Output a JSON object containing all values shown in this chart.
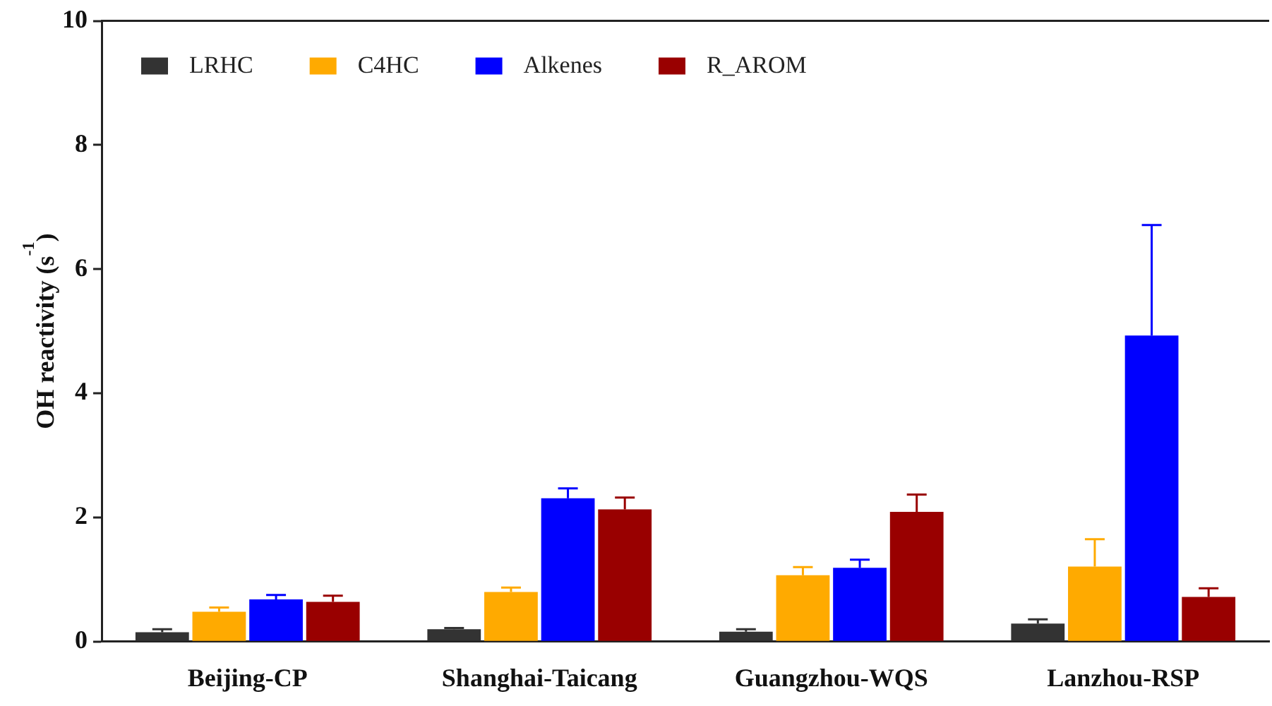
{
  "chart_data": {
    "type": "bar",
    "ylabel": "OH reactivity (s$^{-1}$)",
    "categories": [
      "Beijing-CP",
      "Shanghai-Taicang",
      "Guangzhou-WQS",
      "Lanzhou-RSP"
    ],
    "ylim": [
      0,
      10
    ],
    "yticks": [
      0,
      2,
      4,
      6,
      8,
      10
    ],
    "grid": false,
    "legend": "top left",
    "series": [
      {
        "name": "LRHC",
        "color": "#333333",
        "values": [
          0.15,
          0.2,
          0.16,
          0.29
        ],
        "errors": [
          [
            0.15,
            0.2
          ],
          [
            0.2,
            0.22
          ],
          [
            0.16,
            0.2
          ],
          [
            0.29,
            0.36
          ]
        ]
      },
      {
        "name": "C4HC",
        "color": "#ffaa00",
        "values": [
          0.48,
          0.8,
          1.07,
          1.21
        ],
        "errors": [
          [
            0.48,
            0.55
          ],
          [
            0.8,
            0.87
          ],
          [
            1.07,
            1.2
          ],
          [
            1.21,
            1.65
          ]
        ]
      },
      {
        "name": "Alkenes",
        "color": "#0000ff",
        "values": [
          0.68,
          2.31,
          1.19,
          4.93
        ],
        "errors": [
          [
            0.68,
            0.75
          ],
          [
            2.31,
            2.47
          ],
          [
            1.19,
            1.32
          ],
          [
            4.93,
            6.71
          ]
        ]
      },
      {
        "name": "R_AROM",
        "color": "#990000",
        "values": [
          0.64,
          2.13,
          2.09,
          0.72
        ],
        "errors": [
          [
            0.64,
            0.74
          ],
          [
            2.13,
            2.32
          ],
          [
            2.09,
            2.37
          ],
          [
            0.72,
            0.86
          ]
        ]
      }
    ]
  }
}
